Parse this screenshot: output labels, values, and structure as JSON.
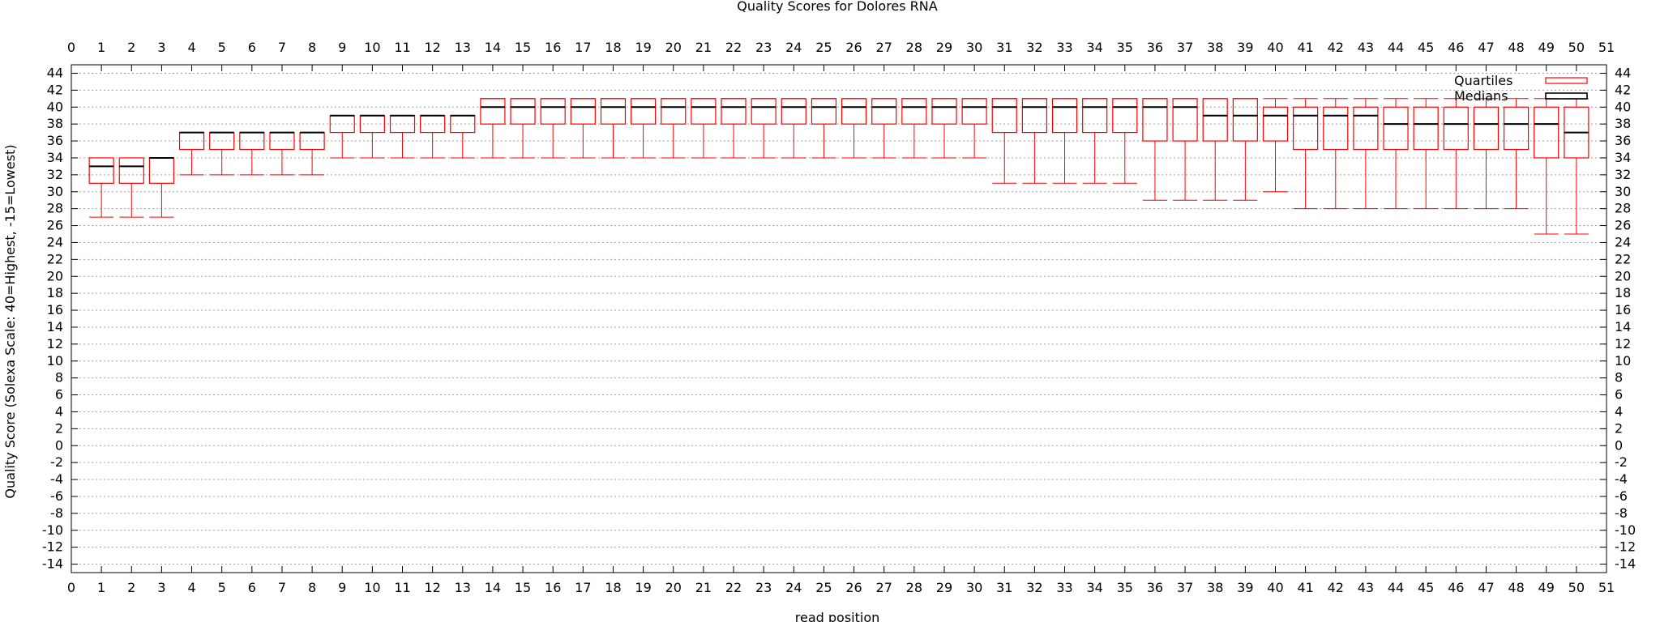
{
  "colors": {
    "box": "#ff0000",
    "median": "#000000",
    "grid": "#a0a0a0",
    "axis": "#000000",
    "background": "#ffffff"
  },
  "chart_data": {
    "type": "box",
    "title": "Quality Scores for Dolores RNA",
    "xlabel": "read position",
    "ylabel": "Quality Score (Solexa Scale: 40=Highest, -15=Lowest)",
    "xlim": [
      0,
      51
    ],
    "ylim": [
      -15,
      45
    ],
    "xticks": [
      0,
      1,
      2,
      3,
      4,
      5,
      6,
      7,
      8,
      9,
      10,
      11,
      12,
      13,
      14,
      15,
      16,
      17,
      18,
      19,
      20,
      21,
      22,
      23,
      24,
      25,
      26,
      27,
      28,
      29,
      30,
      31,
      32,
      33,
      34,
      35,
      36,
      37,
      38,
      39,
      40,
      41,
      42,
      43,
      44,
      45,
      46,
      47,
      48,
      49,
      50,
      51
    ],
    "yticks": [
      -14,
      -12,
      -10,
      -8,
      -6,
      -4,
      -2,
      0,
      2,
      4,
      6,
      8,
      10,
      12,
      14,
      16,
      18,
      20,
      22,
      24,
      26,
      28,
      30,
      32,
      34,
      36,
      38,
      40,
      42,
      44
    ],
    "grid": true,
    "legend_position": "top-right",
    "legend": [
      "Quartiles",
      "Medians"
    ],
    "series": [
      {
        "x": 1,
        "min": 27,
        "q1": 31,
        "median": 33,
        "q3": 34,
        "max": 34
      },
      {
        "x": 2,
        "min": 27,
        "q1": 31,
        "median": 33,
        "q3": 34,
        "max": 34
      },
      {
        "x": 3,
        "min": 27,
        "q1": 31,
        "median": 34,
        "q3": 34,
        "max": 34
      },
      {
        "x": 4,
        "min": 32,
        "q1": 35,
        "median": 37,
        "q3": 37,
        "max": 37
      },
      {
        "x": 5,
        "min": 32,
        "q1": 35,
        "median": 37,
        "q3": 37,
        "max": 37
      },
      {
        "x": 6,
        "min": 32,
        "q1": 35,
        "median": 37,
        "q3": 37,
        "max": 37
      },
      {
        "x": 7,
        "min": 32,
        "q1": 35,
        "median": 37,
        "q3": 37,
        "max": 37
      },
      {
        "x": 8,
        "min": 32,
        "q1": 35,
        "median": 37,
        "q3": 37,
        "max": 37
      },
      {
        "x": 9,
        "min": 34,
        "q1": 37,
        "median": 39,
        "q3": 39,
        "max": 39
      },
      {
        "x": 10,
        "min": 34,
        "q1": 37,
        "median": 39,
        "q3": 39,
        "max": 39
      },
      {
        "x": 11,
        "min": 34,
        "q1": 37,
        "median": 39,
        "q3": 39,
        "max": 39
      },
      {
        "x": 12,
        "min": 34,
        "q1": 37,
        "median": 39,
        "q3": 39,
        "max": 39
      },
      {
        "x": 13,
        "min": 34,
        "q1": 37,
        "median": 39,
        "q3": 39,
        "max": 39
      },
      {
        "x": 14,
        "min": 34,
        "q1": 38,
        "median": 40,
        "q3": 41,
        "max": 41
      },
      {
        "x": 15,
        "min": 34,
        "q1": 38,
        "median": 40,
        "q3": 41,
        "max": 41
      },
      {
        "x": 16,
        "min": 34,
        "q1": 38,
        "median": 40,
        "q3": 41,
        "max": 41
      },
      {
        "x": 17,
        "min": 34,
        "q1": 38,
        "median": 40,
        "q3": 41,
        "max": 41
      },
      {
        "x": 18,
        "min": 34,
        "q1": 38,
        "median": 40,
        "q3": 41,
        "max": 41
      },
      {
        "x": 19,
        "min": 34,
        "q1": 38,
        "median": 40,
        "q3": 41,
        "max": 41
      },
      {
        "x": 20,
        "min": 34,
        "q1": 38,
        "median": 40,
        "q3": 41,
        "max": 41
      },
      {
        "x": 21,
        "min": 34,
        "q1": 38,
        "median": 40,
        "q3": 41,
        "max": 41
      },
      {
        "x": 22,
        "min": 34,
        "q1": 38,
        "median": 40,
        "q3": 41,
        "max": 41
      },
      {
        "x": 23,
        "min": 34,
        "q1": 38,
        "median": 40,
        "q3": 41,
        "max": 41
      },
      {
        "x": 24,
        "min": 34,
        "q1": 38,
        "median": 40,
        "q3": 41,
        "max": 41
      },
      {
        "x": 25,
        "min": 34,
        "q1": 38,
        "median": 40,
        "q3": 41,
        "max": 41
      },
      {
        "x": 26,
        "min": 34,
        "q1": 38,
        "median": 40,
        "q3": 41,
        "max": 41
      },
      {
        "x": 27,
        "min": 34,
        "q1": 38,
        "median": 40,
        "q3": 41,
        "max": 41
      },
      {
        "x": 28,
        "min": 34,
        "q1": 38,
        "median": 40,
        "q3": 41,
        "max": 41
      },
      {
        "x": 29,
        "min": 34,
        "q1": 38,
        "median": 40,
        "q3": 41,
        "max": 41
      },
      {
        "x": 30,
        "min": 34,
        "q1": 38,
        "median": 40,
        "q3": 41,
        "max": 41
      },
      {
        "x": 31,
        "min": 31,
        "q1": 37,
        "median": 40,
        "q3": 41,
        "max": 41
      },
      {
        "x": 32,
        "min": 31,
        "q1": 37,
        "median": 40,
        "q3": 41,
        "max": 41
      },
      {
        "x": 33,
        "min": 31,
        "q1": 37,
        "median": 40,
        "q3": 41,
        "max": 41
      },
      {
        "x": 34,
        "min": 31,
        "q1": 37,
        "median": 40,
        "q3": 41,
        "max": 41
      },
      {
        "x": 35,
        "min": 31,
        "q1": 37,
        "median": 40,
        "q3": 41,
        "max": 41
      },
      {
        "x": 36,
        "min": 29,
        "q1": 36,
        "median": 40,
        "q3": 41,
        "max": 41
      },
      {
        "x": 37,
        "min": 29,
        "q1": 36,
        "median": 40,
        "q3": 41,
        "max": 41
      },
      {
        "x": 38,
        "min": 29,
        "q1": 36,
        "median": 39,
        "q3": 41,
        "max": 41
      },
      {
        "x": 39,
        "min": 29,
        "q1": 36,
        "median": 39,
        "q3": 41,
        "max": 41
      },
      {
        "x": 40,
        "min": 30,
        "q1": 36,
        "median": 39,
        "q3": 40,
        "max": 41
      },
      {
        "x": 41,
        "min": 28,
        "q1": 35,
        "median": 39,
        "q3": 40,
        "max": 41
      },
      {
        "x": 42,
        "min": 28,
        "q1": 35,
        "median": 39,
        "q3": 40,
        "max": 41
      },
      {
        "x": 43,
        "min": 28,
        "q1": 35,
        "median": 39,
        "q3": 40,
        "max": 41
      },
      {
        "x": 44,
        "min": 28,
        "q1": 35,
        "median": 38,
        "q3": 40,
        "max": 41
      },
      {
        "x": 45,
        "min": 28,
        "q1": 35,
        "median": 38,
        "q3": 40,
        "max": 41
      },
      {
        "x": 46,
        "min": 28,
        "q1": 35,
        "median": 38,
        "q3": 40,
        "max": 41
      },
      {
        "x": 47,
        "min": 28,
        "q1": 35,
        "median": 38,
        "q3": 40,
        "max": 41
      },
      {
        "x": 48,
        "min": 28,
        "q1": 35,
        "median": 38,
        "q3": 40,
        "max": 41
      },
      {
        "x": 49,
        "min": 25,
        "q1": 34,
        "median": 38,
        "q3": 40,
        "max": 41
      },
      {
        "x": 50,
        "min": 25,
        "q1": 34,
        "median": 37,
        "q3": 40,
        "max": 41
      }
    ]
  }
}
